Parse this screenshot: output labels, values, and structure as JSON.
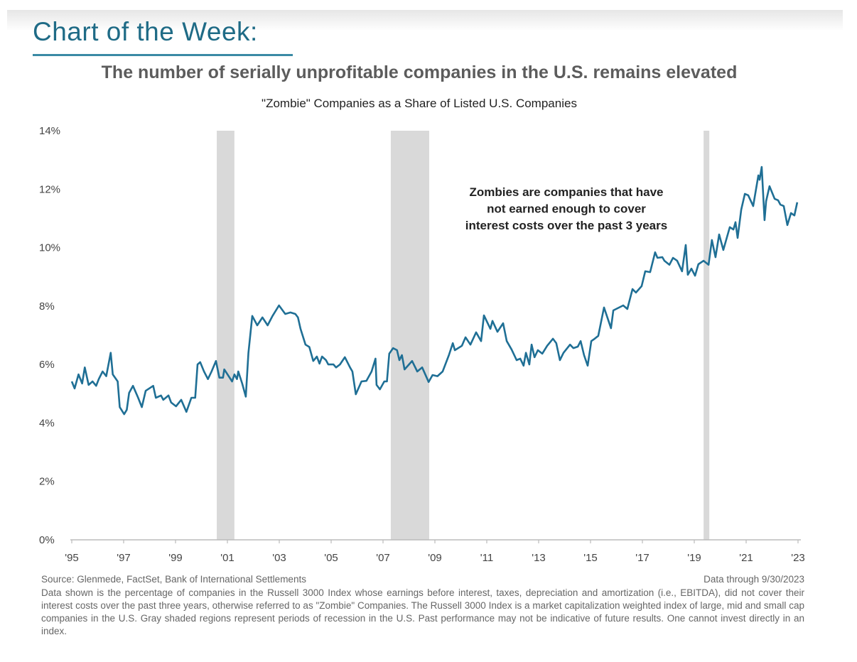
{
  "header": {
    "kicker": "Chart of the Week:",
    "headline": "The number of serially unprofitable companies in the U.S. remains elevated"
  },
  "chart_data": {
    "type": "line",
    "title": "\"Zombie\" Companies as a Share of Listed U.S. Companies",
    "xlabel": "",
    "ylabel": "",
    "xlim": [
      1995,
      2023
    ],
    "ylim": [
      0,
      14
    ],
    "y_ticks": [
      0,
      2,
      4,
      6,
      8,
      10,
      12,
      14
    ],
    "y_tick_labels": [
      "0%",
      "2%",
      "4%",
      "6%",
      "8%",
      "10%",
      "12%",
      "14%"
    ],
    "x_ticks": [
      1995,
      1997,
      1999,
      2001,
      2003,
      2005,
      2007,
      2009,
      2011,
      2013,
      2015,
      2017,
      2019,
      2021,
      2023
    ],
    "x_tick_labels": [
      "'95",
      "'97",
      "'99",
      "'01",
      "'03",
      "'05",
      "'07",
      "'09",
      "'11",
      "'13",
      "'15",
      "'17",
      "'19",
      "'21",
      "'23"
    ],
    "grid": false,
    "line_color": "#1f6f95",
    "recession_color": "#d9d9d9",
    "recessions": [
      [
        2000.59,
        2001.27
      ],
      [
        2007.3,
        2008.78
      ],
      [
        2019.36,
        2019.58
      ]
    ],
    "annotation": [
      "Zombies are companies that have",
      "not earned enough to cover",
      "interest costs over the past 3 years"
    ],
    "series": [
      {
        "name": "Zombie share (%)",
        "x": [
          1995.0,
          1995.11,
          1995.26,
          1995.4,
          1995.5,
          1995.65,
          1995.8,
          1995.94,
          1996.04,
          1996.19,
          1996.33,
          1996.5,
          1996.58,
          1996.77,
          1996.85,
          1997.02,
          1997.12,
          1997.21,
          1997.36,
          1997.56,
          1997.7,
          1997.85,
          1998.14,
          1998.24,
          1998.44,
          1998.53,
          1998.73,
          1998.83,
          1999.02,
          1999.22,
          1999.42,
          1999.61,
          1999.76,
          1999.85,
          1999.95,
          2000.1,
          2000.25,
          2000.39,
          2000.56,
          2000.69,
          2000.83,
          2000.88,
          2001.18,
          2001.27,
          2001.37,
          2001.42,
          2001.57,
          2001.71,
          2001.81,
          2001.96,
          2002.15,
          2002.35,
          2002.55,
          2002.74,
          2002.99,
          2003.23,
          2003.43,
          2003.62,
          2003.72,
          2003.82,
          2004.01,
          2004.16,
          2004.31,
          2004.45,
          2004.55,
          2004.65,
          2004.8,
          2004.89,
          2005.09,
          2005.19,
          2005.34,
          2005.53,
          2005.73,
          2005.82,
          2005.95,
          2006.17,
          2006.36,
          2006.56,
          2006.71,
          2006.75,
          2006.88,
          2007.05,
          2007.15,
          2007.24,
          2007.39,
          2007.54,
          2007.63,
          2007.73,
          2007.83,
          2008.12,
          2008.32,
          2008.51,
          2008.76,
          2008.91,
          2009.1,
          2009.3,
          2009.54,
          2009.69,
          2009.77,
          2010.04,
          2010.18,
          2010.37,
          2010.59,
          2010.78,
          2010.89,
          2011.14,
          2011.22,
          2011.41,
          2011.63,
          2011.77,
          2011.96,
          2012.15,
          2012.29,
          2012.42,
          2012.51,
          2012.64,
          2012.73,
          2012.84,
          2012.97,
          2013.14,
          2013.33,
          2013.55,
          2013.68,
          2013.82,
          2013.96,
          2014.21,
          2014.34,
          2014.51,
          2014.62,
          2014.75,
          2014.89,
          2015.03,
          2015.16,
          2015.3,
          2015.52,
          2015.79,
          2015.88,
          2016.26,
          2016.42,
          2016.62,
          2016.75,
          2016.97,
          2017.11,
          2017.3,
          2017.49,
          2017.58,
          2017.77,
          2017.85,
          2018.04,
          2018.18,
          2018.34,
          2018.53,
          2018.67,
          2018.75,
          2018.89,
          2019.03,
          2019.16,
          2019.36,
          2019.55,
          2019.68,
          2019.82,
          2019.96,
          2020.12,
          2020.37,
          2020.51,
          2020.59,
          2020.67,
          2020.81,
          2020.95,
          2021.08,
          2021.27,
          2021.47,
          2021.52,
          2021.6,
          2021.71,
          2021.77,
          2021.9,
          2022.1,
          2022.23,
          2022.32,
          2022.45,
          2022.59,
          2022.73,
          2022.86,
          2022.97
        ],
        "values": [
          5.42,
          5.18,
          5.66,
          5.35,
          5.9,
          5.3,
          5.42,
          5.27,
          5.5,
          5.76,
          5.6,
          6.4,
          5.66,
          5.42,
          4.54,
          4.3,
          4.45,
          5.03,
          5.27,
          4.86,
          4.54,
          5.1,
          5.27,
          4.86,
          4.94,
          4.79,
          4.94,
          4.7,
          4.57,
          4.79,
          4.38,
          4.86,
          4.86,
          6.0,
          6.08,
          5.76,
          5.5,
          5.76,
          6.12,
          5.55,
          5.55,
          5.83,
          5.42,
          5.66,
          5.5,
          5.76,
          5.35,
          4.9,
          6.4,
          7.66,
          7.34,
          7.61,
          7.34,
          7.66,
          8.02,
          7.73,
          7.78,
          7.73,
          7.61,
          7.22,
          6.68,
          6.6,
          6.12,
          6.27,
          6.03,
          6.27,
          6.15,
          6.0,
          6.0,
          5.9,
          6.0,
          6.25,
          5.9,
          5.76,
          4.98,
          5.42,
          5.44,
          5.76,
          6.2,
          5.3,
          5.15,
          5.42,
          5.42,
          6.37,
          6.56,
          6.49,
          6.15,
          6.32,
          5.83,
          6.12,
          5.76,
          5.9,
          5.4,
          5.64,
          5.6,
          5.76,
          6.32,
          6.73,
          6.49,
          6.64,
          6.93,
          6.68,
          7.1,
          6.8,
          7.68,
          7.22,
          7.49,
          7.12,
          7.41,
          6.8,
          6.51,
          6.15,
          6.2,
          5.96,
          6.4,
          6.0,
          6.68,
          6.25,
          6.49,
          6.37,
          6.64,
          6.88,
          6.73,
          6.15,
          6.4,
          6.68,
          6.56,
          6.61,
          6.8,
          6.32,
          5.96,
          6.8,
          6.88,
          6.98,
          7.95,
          7.24,
          7.85,
          8.02,
          7.9,
          8.58,
          8.46,
          8.68,
          9.19,
          9.16,
          9.84,
          9.65,
          9.67,
          9.55,
          9.41,
          9.65,
          9.55,
          9.19,
          10.09,
          9.07,
          9.28,
          9.04,
          9.43,
          9.55,
          9.41,
          10.26,
          9.67,
          10.45,
          9.92,
          10.7,
          10.62,
          10.87,
          10.33,
          11.3,
          11.84,
          11.79,
          11.42,
          12.47,
          12.32,
          12.76,
          10.94,
          11.59,
          12.1,
          11.67,
          11.62,
          11.47,
          11.42,
          10.77,
          11.18,
          11.1,
          11.55
        ]
      }
    ]
  },
  "footer": {
    "source": "Source: Glenmede, FactSet, Bank of International Settlements",
    "data_through": "Data through 9/30/2023",
    "note": "Data shown is the percentage of companies in the Russell 3000 Index whose earnings before interest, taxes, depreciation and amortization (i.e., EBITDA), did not cover their interest costs over the past three years, otherwise referred to as \"Zombie\" Companies. The Russell 3000 Index is a market capitalization weighted index of large, mid and small cap companies in the U.S. Gray shaded regions represent periods of recession in the U.S. Past performance may not be indicative of future results. One cannot invest directly in an index."
  }
}
